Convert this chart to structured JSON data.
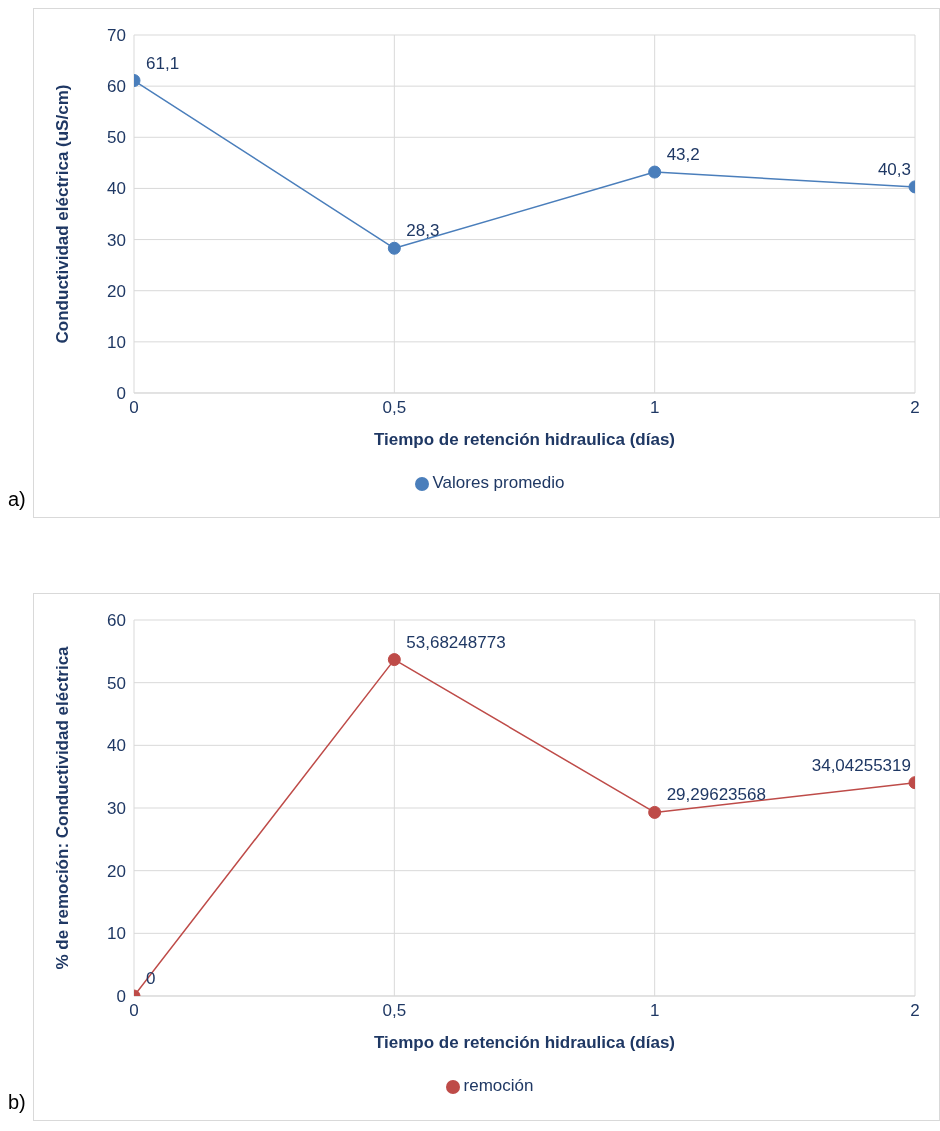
{
  "chart_data": [
    {
      "type": "line",
      "categories": [
        "0",
        "0,5",
        "1",
        "2"
      ],
      "xlabel": "Tiempo de retención hidraulica (días)",
      "ylabel": "Conductividad eléctrica (uS/cm)",
      "ylim": [
        0,
        70
      ],
      "yticks": [
        0,
        10,
        20,
        30,
        40,
        50,
        60,
        70
      ],
      "grid": true,
      "legend": "bottom",
      "marker": "circle",
      "annotations": [
        "a)"
      ],
      "series": [
        {
          "name": "Valores promedio",
          "color": "#4a7ebb",
          "values": [
            61.1,
            28.3,
            43.2,
            40.3
          ],
          "value_labels": [
            "61,1",
            "28,3",
            "43,2",
            "40,3"
          ]
        }
      ]
    },
    {
      "type": "line",
      "categories": [
        "0",
        "0,5",
        "1",
        "2"
      ],
      "xlabel": "Tiempo de retención hidraulica (días)",
      "ylabel": "% de remoción: Conductividad eléctrica",
      "ylim": [
        0,
        60
      ],
      "yticks": [
        0,
        10,
        20,
        30,
        40,
        50,
        60
      ],
      "grid": true,
      "legend": "bottom",
      "marker": "circle",
      "annotations": [
        "b)"
      ],
      "series": [
        {
          "name": "remoción",
          "color": "#be4b48",
          "values": [
            0,
            53.68248773,
            29.29623568,
            34.04255319
          ],
          "value_labels": [
            "0",
            "53,68248773",
            "29,29623568",
            "34,04255319"
          ]
        }
      ]
    }
  ]
}
